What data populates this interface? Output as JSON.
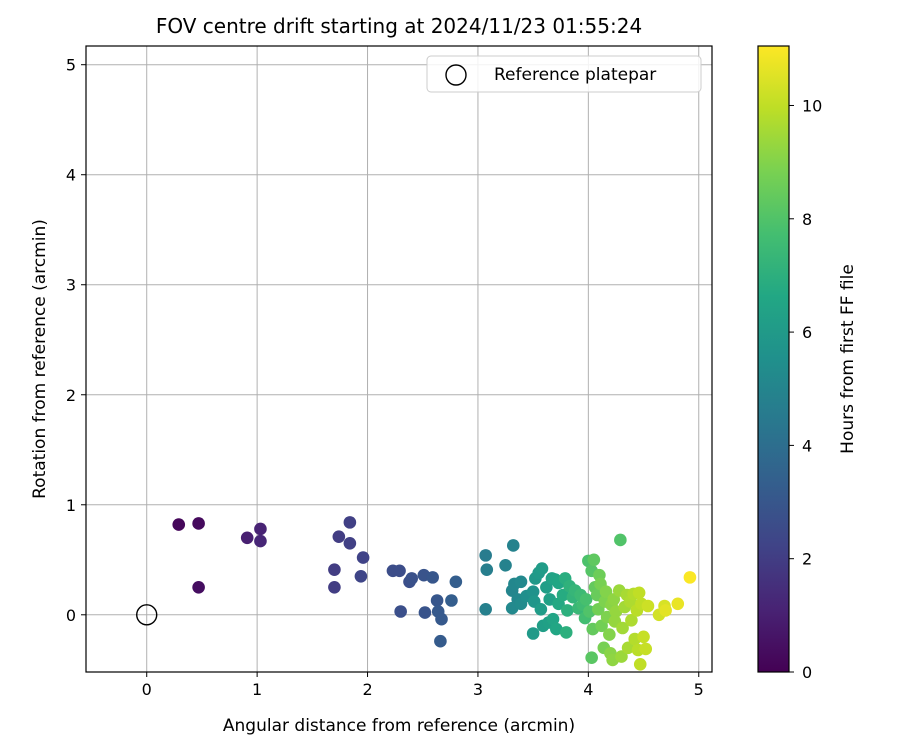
{
  "chart_data": {
    "type": "scatter",
    "title": "FOV centre drift starting at 2024/11/23 01:55:24",
    "xlabel": "Angular distance from reference (arcmin)",
    "ylabel": "Rotation from reference (arcmin)",
    "xlim": [
      -0.55,
      5.12
    ],
    "ylim": [
      -0.52,
      5.17
    ],
    "xticks": [
      0,
      1,
      2,
      3,
      4,
      5
    ],
    "yticks": [
      0,
      1,
      2,
      3,
      4,
      5
    ],
    "grid": true,
    "legend": {
      "placement": "upper right",
      "entries": [
        "Reference platepar"
      ]
    },
    "reference_point": {
      "name": "Reference platepar",
      "x": 0,
      "y": 0,
      "marker": "open-circle"
    },
    "colorbar": {
      "label": "Hours from first FF file",
      "range": [
        0,
        11.05
      ],
      "ticks": [
        0,
        2,
        4,
        6,
        8,
        10
      ],
      "colormap": "viridis"
    },
    "points": [
      {
        "x": 0.29,
        "y": 0.82,
        "c": 0.2
      },
      {
        "x": 0.47,
        "y": 0.83,
        "c": 0.3
      },
      {
        "x": 0.47,
        "y": 0.25,
        "c": 0.4
      },
      {
        "x": 0.91,
        "y": 0.7,
        "c": 1.0
      },
      {
        "x": 1.03,
        "y": 0.78,
        "c": 1.1
      },
      {
        "x": 1.03,
        "y": 0.67,
        "c": 1.2
      },
      {
        "x": 1.7,
        "y": 0.41,
        "c": 2.0
      },
      {
        "x": 1.7,
        "y": 0.25,
        "c": 2.0
      },
      {
        "x": 1.74,
        "y": 0.71,
        "c": 2.0
      },
      {
        "x": 1.84,
        "y": 0.84,
        "c": 2.1
      },
      {
        "x": 1.84,
        "y": 0.65,
        "c": 2.1
      },
      {
        "x": 1.96,
        "y": 0.52,
        "c": 2.2
      },
      {
        "x": 1.94,
        "y": 0.35,
        "c": 2.3
      },
      {
        "x": 2.23,
        "y": 0.4,
        "c": 2.6
      },
      {
        "x": 2.29,
        "y": 0.4,
        "c": 2.6
      },
      {
        "x": 2.3,
        "y": 0.03,
        "c": 2.7
      },
      {
        "x": 2.38,
        "y": 0.3,
        "c": 2.7
      },
      {
        "x": 2.4,
        "y": 0.33,
        "c": 2.8
      },
      {
        "x": 2.51,
        "y": 0.36,
        "c": 2.9
      },
      {
        "x": 2.52,
        "y": 0.02,
        "c": 2.9
      },
      {
        "x": 2.59,
        "y": 0.34,
        "c": 3.0
      },
      {
        "x": 2.63,
        "y": 0.13,
        "c": 3.0
      },
      {
        "x": 2.64,
        "y": 0.03,
        "c": 3.1
      },
      {
        "x": 2.67,
        "y": -0.04,
        "c": 3.1
      },
      {
        "x": 2.66,
        "y": -0.24,
        "c": 3.2
      },
      {
        "x": 2.76,
        "y": 0.13,
        "c": 3.3
      },
      {
        "x": 2.8,
        "y": 0.3,
        "c": 3.3
      },
      {
        "x": 3.07,
        "y": 0.54,
        "c": 4.6
      },
      {
        "x": 3.08,
        "y": 0.41,
        "c": 4.7
      },
      {
        "x": 3.07,
        "y": 0.05,
        "c": 4.8
      },
      {
        "x": 3.25,
        "y": 0.45,
        "c": 4.9
      },
      {
        "x": 3.32,
        "y": 0.63,
        "c": 4.9
      },
      {
        "x": 3.31,
        "y": 0.22,
        "c": 5.0
      },
      {
        "x": 3.33,
        "y": 0.28,
        "c": 5.1
      },
      {
        "x": 3.36,
        "y": 0.14,
        "c": 5.1
      },
      {
        "x": 3.39,
        "y": 0.3,
        "c": 5.2
      },
      {
        "x": 3.31,
        "y": 0.06,
        "c": 5.2
      },
      {
        "x": 3.39,
        "y": 0.1,
        "c": 5.3
      },
      {
        "x": 3.44,
        "y": 0.17,
        "c": 5.5
      },
      {
        "x": 3.5,
        "y": 0.21,
        "c": 5.6
      },
      {
        "x": 3.51,
        "y": 0.12,
        "c": 5.8
      },
      {
        "x": 3.52,
        "y": 0.33,
        "c": 5.9
      },
      {
        "x": 3.5,
        "y": -0.17,
        "c": 6.0
      },
      {
        "x": 3.55,
        "y": 0.38,
        "c": 6.0
      },
      {
        "x": 3.58,
        "y": 0.42,
        "c": 6.1
      },
      {
        "x": 3.57,
        "y": 0.05,
        "c": 6.1
      },
      {
        "x": 3.59,
        "y": -0.1,
        "c": 6.2
      },
      {
        "x": 3.62,
        "y": 0.25,
        "c": 6.2
      },
      {
        "x": 3.64,
        "y": -0.07,
        "c": 6.3
      },
      {
        "x": 3.65,
        "y": 0.14,
        "c": 6.3
      },
      {
        "x": 3.67,
        "y": 0.33,
        "c": 6.4
      },
      {
        "x": 3.68,
        "y": -0.04,
        "c": 6.5
      },
      {
        "x": 3.7,
        "y": 0.32,
        "c": 6.5
      },
      {
        "x": 3.73,
        "y": 0.29,
        "c": 6.6
      },
      {
        "x": 3.71,
        "y": -0.13,
        "c": 6.6
      },
      {
        "x": 3.73,
        "y": 0.1,
        "c": 6.7
      },
      {
        "x": 3.77,
        "y": 0.18,
        "c": 6.8
      },
      {
        "x": 3.79,
        "y": 0.33,
        "c": 6.9
      },
      {
        "x": 3.81,
        "y": 0.04,
        "c": 7.0
      },
      {
        "x": 3.8,
        "y": -0.16,
        "c": 7.0
      },
      {
        "x": 3.83,
        "y": 0.26,
        "c": 7.1
      },
      {
        "x": 3.86,
        "y": 0.16,
        "c": 7.2
      },
      {
        "x": 3.88,
        "y": 0.22,
        "c": 7.3
      },
      {
        "x": 3.91,
        "y": 0.06,
        "c": 7.4
      },
      {
        "x": 3.93,
        "y": 0.18,
        "c": 7.5
      },
      {
        "x": 3.95,
        "y": 0.09,
        "c": 7.6
      },
      {
        "x": 3.97,
        "y": -0.03,
        "c": 7.7
      },
      {
        "x": 3.98,
        "y": 0.14,
        "c": 7.8
      },
      {
        "x": 4.0,
        "y": 0.49,
        "c": 7.9
      },
      {
        "x": 4.01,
        "y": 0.03,
        "c": 8.0
      },
      {
        "x": 4.03,
        "y": 0.4,
        "c": 8.1
      },
      {
        "x": 4.03,
        "y": -0.39,
        "c": 8.2
      },
      {
        "x": 4.05,
        "y": 0.5,
        "c": 8.3
      },
      {
        "x": 4.06,
        "y": 0.25,
        "c": 8.4
      },
      {
        "x": 4.04,
        "y": -0.13,
        "c": 8.4
      },
      {
        "x": 4.08,
        "y": 0.18,
        "c": 8.5
      },
      {
        "x": 4.1,
        "y": 0.36,
        "c": 8.6
      },
      {
        "x": 4.09,
        "y": 0.05,
        "c": 8.7
      },
      {
        "x": 4.12,
        "y": -0.1,
        "c": 8.7
      },
      {
        "x": 4.11,
        "y": 0.28,
        "c": 8.8
      },
      {
        "x": 4.14,
        "y": -0.3,
        "c": 8.8
      },
      {
        "x": 4.15,
        "y": 0.12,
        "c": 8.9
      },
      {
        "x": 4.17,
        "y": -0.02,
        "c": 8.9
      },
      {
        "x": 4.16,
        "y": 0.21,
        "c": 9.0
      },
      {
        "x": 4.19,
        "y": -0.18,
        "c": 9.0
      },
      {
        "x": 4.21,
        "y": 0.09,
        "c": 9.1
      },
      {
        "x": 4.2,
        "y": -0.35,
        "c": 9.1
      },
      {
        "x": 4.22,
        "y": -0.41,
        "c": 9.2
      },
      {
        "x": 4.23,
        "y": 0.14,
        "c": 9.2
      },
      {
        "x": 4.25,
        "y": 0.03,
        "c": 9.3
      },
      {
        "x": 4.24,
        "y": -0.06,
        "c": 9.3
      },
      {
        "x": 4.29,
        "y": 0.68,
        "c": 8.0
      },
      {
        "x": 4.28,
        "y": 0.22,
        "c": 9.4
      },
      {
        "x": 4.3,
        "y": -0.38,
        "c": 9.4
      },
      {
        "x": 4.31,
        "y": -0.12,
        "c": 9.5
      },
      {
        "x": 4.33,
        "y": 0.07,
        "c": 9.5
      },
      {
        "x": 4.35,
        "y": 0.18,
        "c": 9.6
      },
      {
        "x": 4.36,
        "y": -0.3,
        "c": 9.6
      },
      {
        "x": 4.38,
        "y": 0.12,
        "c": 9.7
      },
      {
        "x": 4.39,
        "y": -0.05,
        "c": 9.7
      },
      {
        "x": 4.41,
        "y": 0.19,
        "c": 9.8
      },
      {
        "x": 4.42,
        "y": -0.22,
        "c": 9.8
      },
      {
        "x": 4.44,
        "y": 0.04,
        "c": 9.9
      },
      {
        "x": 4.45,
        "y": -0.32,
        "c": 9.9
      },
      {
        "x": 4.46,
        "y": 0.2,
        "c": 10.0
      },
      {
        "x": 4.47,
        "y": -0.45,
        "c": 10.0
      },
      {
        "x": 4.48,
        "y": 0.1,
        "c": 10.0
      },
      {
        "x": 4.5,
        "y": -0.2,
        "c": 10.1
      },
      {
        "x": 4.52,
        "y": -0.31,
        "c": 10.1
      },
      {
        "x": 4.54,
        "y": 0.08,
        "c": 10.2
      },
      {
        "x": 4.64,
        "y": 0.0,
        "c": 10.3
      },
      {
        "x": 4.69,
        "y": 0.08,
        "c": 10.4
      },
      {
        "x": 4.7,
        "y": 0.04,
        "c": 10.6
      },
      {
        "x": 4.81,
        "y": 0.1,
        "c": 10.7
      },
      {
        "x": 4.92,
        "y": 0.34,
        "c": 11.0
      }
    ]
  }
}
